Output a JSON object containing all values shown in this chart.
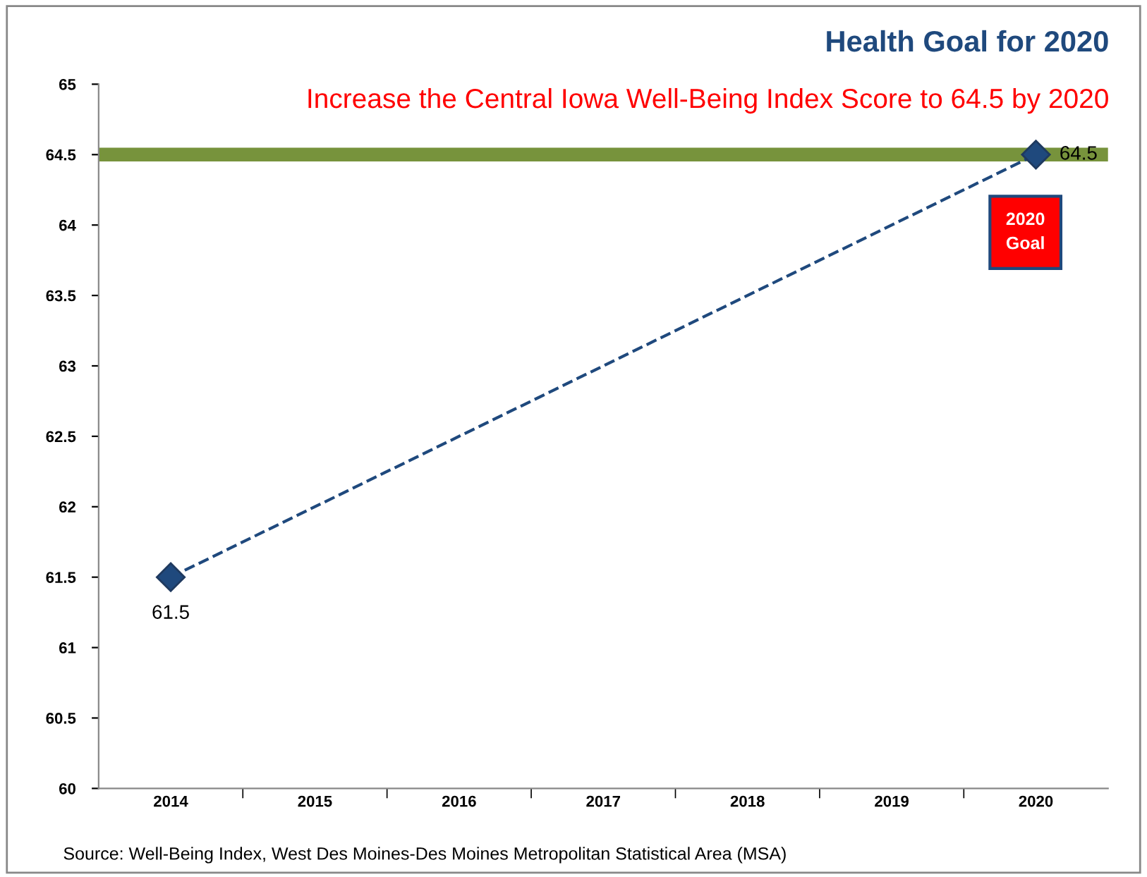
{
  "chart_data": {
    "type": "line",
    "title": "Health Goal for 2020",
    "subtitle": "Increase the Central Iowa Well-Being Index Score to 64.5 by 2020",
    "categories": [
      "2014",
      "2015",
      "2016",
      "2017",
      "2018",
      "2019",
      "2020"
    ],
    "series": [
      {
        "color": "#1f497d",
        "values": [
          61.5,
          null,
          null,
          null,
          null,
          null,
          64.5
        ],
        "value_labels": [
          "61.5",
          null,
          null,
          null,
          null,
          null,
          "64.5"
        ]
      }
    ],
    "marker": "diamond",
    "line_style": "dashed",
    "ylim": [
      60,
      65
    ],
    "yticks": [
      60,
      60.5,
      61,
      61.5,
      62,
      62.5,
      63,
      63.5,
      64,
      64.5,
      65
    ],
    "grid": false,
    "ref_lines": [
      {
        "axis": "y",
        "value": 64.5,
        "color": "#77933c"
      }
    ],
    "annotations": [
      "2020\nGoal",
      "Source: Well-Being Index, West Des Moines-Des Moines Metropolitan Statistical Area (MSA)"
    ]
  }
}
